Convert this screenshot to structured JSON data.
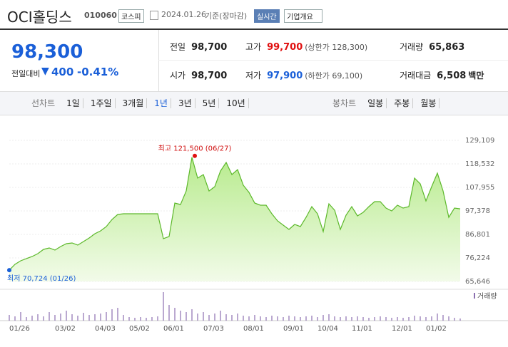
{
  "header": {
    "title": "OCI홀딩스",
    "code": "010060",
    "market": "코스피",
    "date": "2024.01.26",
    "basis": "기준(장마감)",
    "realtime": "실시간",
    "company_info": "기업개요"
  },
  "quote": {
    "price": "98,300",
    "change_label": "전일대비",
    "change": "400",
    "change_rate": "-0.41%",
    "rows": [
      [
        {
          "label": "전일",
          "value": "98,700"
        },
        {
          "label": "고가",
          "value": "99,700",
          "note": "(상한가 128,300)"
        },
        {
          "label": "거래량",
          "value": "65,863"
        }
      ],
      [
        {
          "label": "시가",
          "value": "98,700"
        },
        {
          "label": "저가",
          "value": "97,900",
          "note": "(하한가 69,100)"
        },
        {
          "label": "거래대금",
          "value": "6,508",
          "unit": "백만"
        }
      ]
    ]
  },
  "tabs": {
    "line_label": "선차트",
    "line": [
      "1일",
      "1주일",
      "3개월",
      "1년",
      "3년",
      "5년",
      "10년"
    ],
    "active": 3,
    "candle_label": "봉차트",
    "candle": [
      "일봉",
      "주봉",
      "월봉"
    ]
  },
  "chart_data": {
    "type": "line",
    "color": "#5cb82a",
    "volume_color": "#8b6fb0",
    "volume_label": "거래량",
    "grid": true,
    "max_label": "최고 121,500 (06/27)",
    "min_label": "최저 70,724 (01/26)",
    "max_index": 32,
    "min_index": 0,
    "categories": [
      "01/26",
      null,
      null,
      null,
      null,
      null,
      null,
      null,
      "03/02",
      null,
      null,
      null,
      null,
      null,
      null,
      "04/03",
      null,
      null,
      null,
      null,
      null,
      "05/02",
      null,
      null,
      null,
      null,
      null,
      "06/01",
      null,
      null,
      null,
      null,
      null,
      null,
      "07/03",
      null,
      null,
      null,
      null,
      null,
      null,
      "08/01",
      null,
      null,
      null,
      null,
      null,
      null,
      "09/01",
      null,
      null,
      null,
      null,
      null,
      "10/04",
      null,
      null,
      null,
      null,
      null,
      "11/01",
      null,
      null,
      null,
      null,
      null,
      null,
      "12/01",
      null,
      null,
      null,
      null,
      null,
      "01/02",
      null,
      null,
      null,
      null,
      null,
      null
    ],
    "values": [
      70724,
      73342,
      74944,
      75906,
      76867,
      78149,
      80073,
      80714,
      79752,
      81355,
      82637,
      82957,
      81996,
      83598,
      85200,
      87123,
      88405,
      90328,
      93533,
      95777,
      96097,
      96097,
      96097,
      96097,
      96097,
      96097,
      96097,
      84880,
      85842,
      100905,
      100264,
      106353,
      121500,
      112123,
      113721,
      106353,
      108277,
      115328,
      119173,
      113725,
      115968,
      108918,
      105713,
      100905,
      99944,
      99944,
      96097,
      92893,
      90970,
      89047,
      91290,
      90328,
      94495,
      99302,
      96097,
      88085,
      100585,
      97700,
      89047,
      95456,
      99302,
      95136,
      96738,
      99302,
      101546,
      101546,
      98661,
      97379,
      99944,
      98661,
      99302,
      112123,
      109559,
      101866,
      108277,
      114366,
      106353,
      94495,
      98661,
      98300
    ],
    "volume": [
      8,
      6,
      12,
      5,
      7,
      9,
      6,
      12,
      8,
      10,
      14,
      9,
      7,
      11,
      8,
      9,
      10,
      12,
      16,
      18,
      8,
      5,
      4,
      5,
      4,
      5,
      6,
      40,
      22,
      18,
      14,
      12,
      16,
      10,
      12,
      8,
      10,
      14,
      9,
      8,
      10,
      7,
      6,
      8,
      6,
      5,
      7,
      6,
      5,
      7,
      6,
      5,
      6,
      7,
      5,
      8,
      9,
      6,
      5,
      6,
      5,
      6,
      5,
      4,
      5,
      6,
      5,
      4,
      5,
      4,
      5,
      7,
      6,
      5,
      6,
      10,
      8,
      6,
      4,
      3
    ],
    "ylim": [
      65646,
      129109
    ],
    "yticks": [
      {
        "value": 65646,
        "label": "65,646"
      },
      {
        "value": 76224,
        "label": "76,224"
      },
      {
        "value": 86801,
        "label": "86,801"
      },
      {
        "value": 97378,
        "label": "97,378"
      },
      {
        "value": 107955,
        "label": "107,955"
      },
      {
        "value": 118532,
        "label": "118,532"
      },
      {
        "value": 129109,
        "label": "129,109"
      }
    ]
  }
}
